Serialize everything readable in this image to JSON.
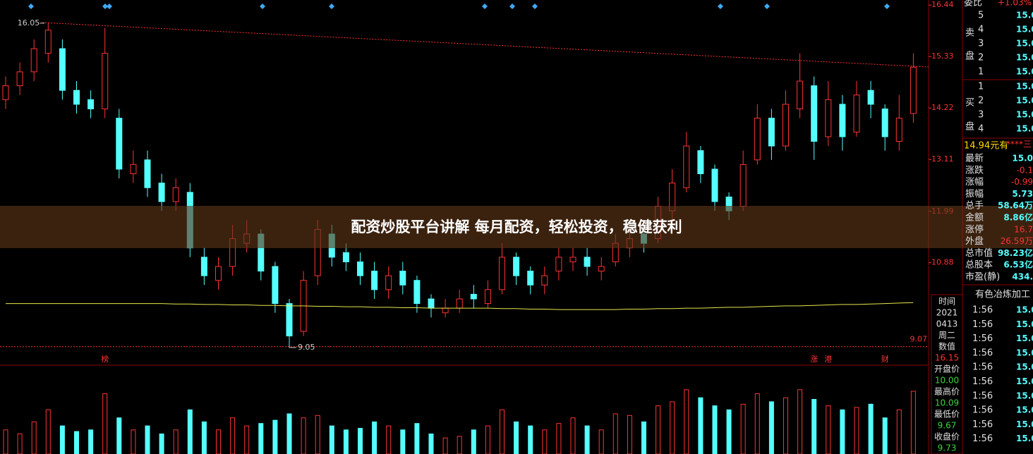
{
  "chart_data": {
    "type": "candlestick",
    "ylim": [
      8.67,
      16.55
    ],
    "yticks": [
      16.44,
      15.33,
      14.22,
      13.11,
      11.99,
      10.88
    ],
    "max_mark": 16.05,
    "min_mark": 9.05,
    "ref_line": 9.07,
    "up_color": "#ff3232",
    "down_color": "#54ffff",
    "ma_color": "#e6e64c",
    "open": [
      14.4,
      14.7,
      15.0,
      15.4,
      15.5,
      14.6,
      14.4,
      14.2,
      14.0,
      12.8,
      13.1,
      12.6,
      12.2,
      12.4,
      11.0,
      10.5,
      10.8,
      11.3,
      11.5,
      10.8,
      10.0,
      9.4,
      10.6,
      11.5,
      11.1,
      10.9,
      10.7,
      10.3,
      10.7,
      10.5,
      10.1,
      9.8,
      9.9,
      10.2,
      10.0,
      10.3,
      11.0,
      10.7,
      10.4,
      10.7,
      10.9,
      11.0,
      10.7,
      10.9,
      11.2,
      11.5,
      11.4,
      12.0,
      12.5,
      13.3,
      12.9,
      12.3,
      12.1,
      13.1,
      14.0,
      13.4,
      14.2,
      14.7,
      13.6,
      14.3,
      13.7,
      14.6,
      14.2,
      13.5,
      14.1
    ],
    "high": [
      14.9,
      15.2,
      15.7,
      16.05,
      15.7,
      14.8,
      14.6,
      15.95,
      14.2,
      13.3,
      13.3,
      12.8,
      12.7,
      12.6,
      11.2,
      11.0,
      11.7,
      11.8,
      11.6,
      10.9,
      10.1,
      10.7,
      11.8,
      11.7,
      11.3,
      11.1,
      10.9,
      10.8,
      10.9,
      10.6,
      10.2,
      10.1,
      10.3,
      10.4,
      10.5,
      11.3,
      11.1,
      10.8,
      10.8,
      11.2,
      11.2,
      11.2,
      11.0,
      11.5,
      11.6,
      11.7,
      12.3,
      12.9,
      13.7,
      13.4,
      13.0,
      12.4,
      13.3,
      14.3,
      14.2,
      14.6,
      15.4,
      14.9,
      14.8,
      14.5,
      14.8,
      14.8,
      14.3,
      14.5,
      15.4
    ],
    "low": [
      14.2,
      14.5,
      14.8,
      15.2,
      14.4,
      14.1,
      14.0,
      14.0,
      12.7,
      12.6,
      12.3,
      12.0,
      12.0,
      11.0,
      10.4,
      10.3,
      10.6,
      11.1,
      10.5,
      9.8,
      9.05,
      9.3,
      10.4,
      10.8,
      10.7,
      10.4,
      10.1,
      10.1,
      10.2,
      9.8,
      9.7,
      9.7,
      9.8,
      9.9,
      9.9,
      10.2,
      10.4,
      10.2,
      10.2,
      10.5,
      10.7,
      10.6,
      10.5,
      10.8,
      11.0,
      11.1,
      11.3,
      11.8,
      12.4,
      12.6,
      12.0,
      11.8,
      12.0,
      13.0,
      13.1,
      13.3,
      14.0,
      13.1,
      13.4,
      13.3,
      13.6,
      14.0,
      13.3,
      13.3,
      13.9
    ],
    "close": [
      14.7,
      15.0,
      15.5,
      15.9,
      14.6,
      14.3,
      14.2,
      15.4,
      12.9,
      13.0,
      12.5,
      12.2,
      12.5,
      11.2,
      10.6,
      10.8,
      11.4,
      11.5,
      10.7,
      10.0,
      9.3,
      10.5,
      11.6,
      11.0,
      10.9,
      10.6,
      10.3,
      10.6,
      10.4,
      10.0,
      9.9,
      9.9,
      10.1,
      10.1,
      10.3,
      11.0,
      10.6,
      10.4,
      10.6,
      11.0,
      11.0,
      10.8,
      10.8,
      11.3,
      11.4,
      11.3,
      12.1,
      12.6,
      13.4,
      12.8,
      12.2,
      12.0,
      13.0,
      14.0,
      13.4,
      14.3,
      14.8,
      13.5,
      14.4,
      13.6,
      14.5,
      14.3,
      13.6,
      14.0,
      15.1
    ],
    "ma": [
      10.0,
      10.0,
      10.0,
      10.0,
      10.0,
      10.0,
      10.0,
      10.0,
      10.0,
      10.0,
      10.0,
      10.0,
      9.99,
      9.99,
      9.98,
      9.98,
      9.97,
      9.97,
      9.96,
      9.96,
      9.95,
      9.95,
      9.94,
      9.94,
      9.93,
      9.93,
      9.92,
      9.92,
      9.91,
      9.91,
      9.9,
      9.9,
      9.9,
      9.9,
      9.9,
      9.89,
      9.89,
      9.88,
      9.88,
      9.87,
      9.87,
      9.87,
      9.87,
      9.87,
      9.88,
      9.88,
      9.89,
      9.89,
      9.9,
      9.9,
      9.91,
      9.92,
      9.92,
      9.93,
      9.94,
      9.95,
      9.95,
      9.96,
      9.97,
      9.98,
      9.98,
      9.99,
      10.0,
      10.01,
      10.02
    ],
    "vlim": [
      0,
      100
    ],
    "volume": [
      30,
      25,
      40,
      55,
      35,
      28,
      30,
      75,
      45,
      30,
      35,
      25,
      30,
      55,
      40,
      30,
      45,
      35,
      38,
      42,
      50,
      45,
      48,
      35,
      30,
      32,
      40,
      35,
      30,
      38,
      25,
      20,
      22,
      30,
      35,
      55,
      40,
      35,
      30,
      38,
      45,
      35,
      30,
      50,
      48,
      40,
      60,
      65,
      80,
      70,
      60,
      55,
      62,
      75,
      65,
      70,
      80,
      68,
      60,
      55,
      58,
      62,
      45,
      55,
      78
    ],
    "event_tags": [
      null,
      null,
      null,
      null,
      null,
      null,
      null,
      "榜",
      null,
      null,
      null,
      null,
      null,
      null,
      null,
      null,
      null,
      null,
      null,
      null,
      null,
      null,
      null,
      null,
      null,
      null,
      null,
      null,
      null,
      null,
      null,
      null,
      null,
      null,
      null,
      null,
      null,
      null,
      null,
      null,
      null,
      null,
      null,
      null,
      null,
      null,
      null,
      null,
      null,
      null,
      null,
      null,
      null,
      null,
      null,
      null,
      null,
      "涨",
      "港",
      null,
      null,
      null,
      "财",
      null,
      null
    ]
  },
  "banner": "配资炒股平台讲解 每月配资，轻松投资，稳健获利",
  "order_book": {
    "ratio_label": "委比",
    "ratio": "+1.03%",
    "sell_label": [
      "卖",
      "盘"
    ],
    "sell_levels": [
      "5",
      "4",
      "3",
      "2",
      "1"
    ],
    "sell_prices": [
      "15.0",
      "15.0",
      "15.0",
      "15.0",
      "15.0"
    ],
    "buy_label": [
      "买",
      "盘"
    ],
    "buy_levels": [
      "1",
      "2",
      "3",
      "4"
    ],
    "buy_prices": [
      "15.0",
      "15.0",
      "15.0",
      "15.0"
    ]
  },
  "summary_head": [
    "14.94元有",
    "****三"
  ],
  "stats": [
    [
      "最新",
      "15.0"
    ],
    [
      "涨跌",
      "-0.1"
    ],
    [
      "涨幅",
      "-0.99"
    ],
    [
      "振幅",
      "5.73"
    ],
    [
      "总手",
      "58.64万"
    ],
    [
      "金额",
      "8.86亿"
    ],
    [
      "涨停",
      "16.7"
    ],
    [
      "外盘",
      "26.59万"
    ],
    [
      "总市值",
      "98.23亿"
    ],
    [
      "总股本",
      "6.53亿"
    ],
    [
      "市盈(静)",
      "434."
    ]
  ],
  "sector": "有色冶炼加工",
  "ticks": [
    [
      "1:56",
      "15.0"
    ],
    [
      "1:56",
      "15.0"
    ],
    [
      "1:56",
      "15.0"
    ],
    [
      "1:56",
      "15.0"
    ],
    [
      "1:56",
      "15.0"
    ],
    [
      "1:56",
      "15.0"
    ],
    [
      "1:56",
      "15.0"
    ],
    [
      "1:56",
      "15.0"
    ],
    [
      "1:56",
      "15.0"
    ],
    [
      "1:56",
      "15.0"
    ]
  ],
  "cursor_info": [
    "时间",
    "2021",
    "0413",
    "周二",
    "数值",
    "16.15",
    "开盘价",
    "10.00",
    "最高价",
    "10.09",
    "最低价",
    "9.67",
    "收盘价",
    "9.73"
  ]
}
